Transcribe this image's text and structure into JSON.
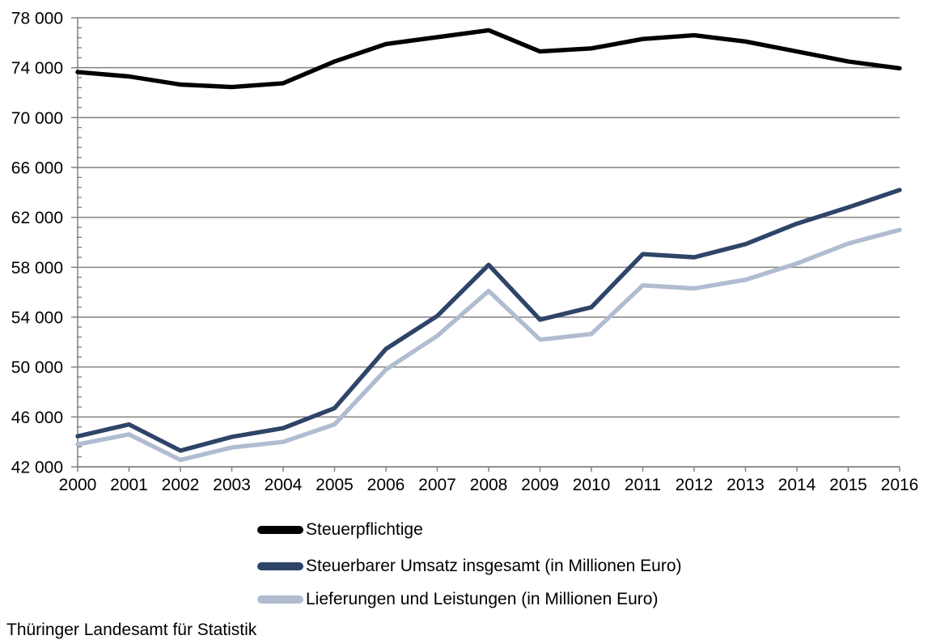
{
  "source_note": "Thüringer Landesamt für Statistik",
  "colors": {
    "background": "#ffffff",
    "grid": "#808080",
    "axis": "#808080",
    "text": "#000000",
    "series_black": "#000000",
    "series_navy": "#2e4468",
    "series_light": "#b0bcd0"
  },
  "chart_data": {
    "type": "line",
    "title": "",
    "xlabel": "",
    "ylabel": "",
    "grid": true,
    "legend_position": "bottom",
    "categories": [
      "2000",
      "2001",
      "2002",
      "2003",
      "2004",
      "2005",
      "2006",
      "2007",
      "2008",
      "2009",
      "2010",
      "2011",
      "2012",
      "2013",
      "2014",
      "2015",
      "2016"
    ],
    "y_axis": {
      "min": 42000,
      "max": 78000,
      "major_step": 4000,
      "minor_step": 800,
      "tick_labels": [
        "42 000",
        "46 000",
        "50 000",
        "54 000",
        "58 000",
        "62 000",
        "66 000",
        "70 000",
        "74 000",
        "78 000"
      ]
    },
    "series": [
      {
        "name": "Steuerpflichtige",
        "color": "#000000",
        "values": [
          73650,
          73300,
          72650,
          72450,
          72750,
          74500,
          75900,
          76450,
          77000,
          75300,
          75550,
          76300,
          76600,
          76100,
          75300,
          74500,
          73950
        ]
      },
      {
        "name": "Steuerbarer Umsatz insgesamt (in Millionen Euro)",
        "color": "#2e4468",
        "values": [
          44450,
          45400,
          43300,
          44400,
          45100,
          46700,
          51450,
          54100,
          58200,
          53800,
          54800,
          59050,
          58800,
          59850,
          61500,
          62800,
          64200
        ]
      },
      {
        "name": "Lieferungen und Leistungen (in Millionen Euro)",
        "color": "#b0bcd0",
        "values": [
          43800,
          44600,
          42550,
          43550,
          44000,
          45400,
          49800,
          52500,
          56100,
          52200,
          52650,
          56550,
          56300,
          57000,
          58300,
          59900,
          61000
        ]
      }
    ]
  }
}
